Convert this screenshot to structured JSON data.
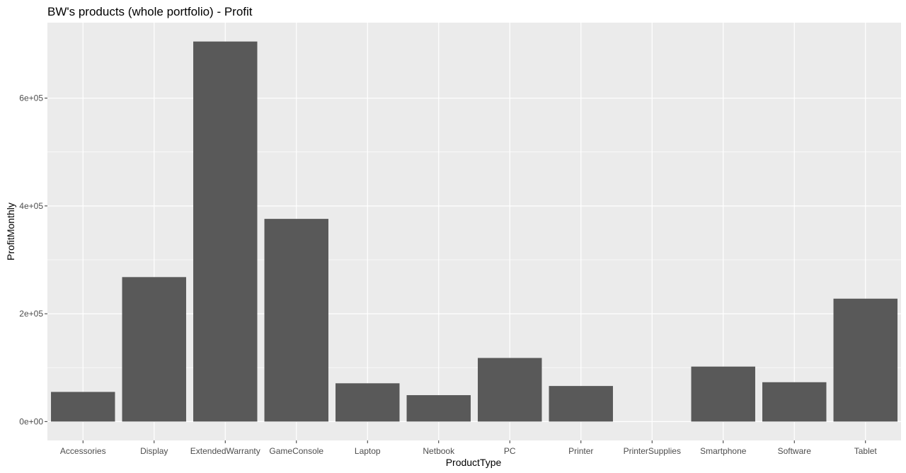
{
  "chart_data": {
    "type": "bar",
    "title": "BW's products (whole portfolio) - Profit",
    "xlabel": "ProductType",
    "ylabel": "ProfitMonthly",
    "categories": [
      "Accessories",
      "Display",
      "ExtendedWarranty",
      "GameConsole",
      "Laptop",
      "Netbook",
      "PC",
      "Printer",
      "PrinterSupplies",
      "Smartphone",
      "Software",
      "Tablet"
    ],
    "values": [
      55000,
      268000,
      705000,
      376000,
      71000,
      49000,
      118000,
      66000,
      0,
      102000,
      73000,
      228000
    ],
    "ylim": [
      -35000,
      740000
    ],
    "yticks": [
      0,
      200000,
      400000,
      600000
    ],
    "ytick_labels": [
      "0e+00",
      "2e+05",
      "4e+05",
      "6e+05"
    ],
    "grid": true,
    "colors": {
      "panel": "#ebebeb",
      "grid": "#ffffff",
      "bar": "#595959",
      "tick_label": "#4d4d4d",
      "text": "#000000"
    }
  }
}
